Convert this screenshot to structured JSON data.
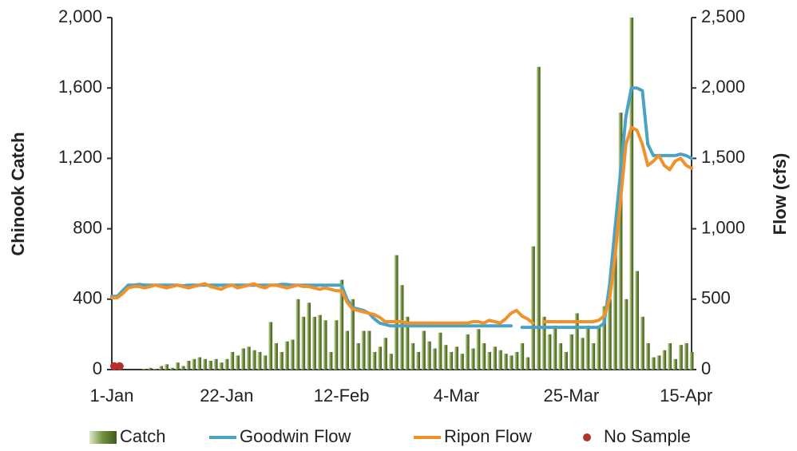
{
  "chart_data": {
    "type": "combo",
    "y_label": "Chinook Catch",
    "y2_label": "Flow (cfs)",
    "categories": [
      "1-Jan",
      null,
      null,
      null,
      null,
      null,
      null,
      null,
      null,
      null,
      null,
      null,
      null,
      null,
      null,
      null,
      null,
      null,
      null,
      null,
      null,
      "22-Jan",
      null,
      null,
      null,
      null,
      null,
      null,
      null,
      null,
      null,
      null,
      null,
      null,
      null,
      null,
      null,
      null,
      null,
      null,
      null,
      null,
      "12-Feb",
      null,
      null,
      null,
      null,
      null,
      null,
      null,
      null,
      null,
      null,
      null,
      null,
      null,
      null,
      null,
      null,
      null,
      null,
      null,
      null,
      "4-Mar",
      null,
      null,
      null,
      null,
      null,
      null,
      null,
      null,
      null,
      null,
      null,
      null,
      null,
      null,
      null,
      null,
      null,
      null,
      null,
      null,
      "25-Mar",
      null,
      null,
      null,
      null,
      null,
      null,
      null,
      null,
      null,
      null,
      null,
      null,
      null,
      null,
      null,
      null,
      null,
      null,
      null,
      null,
      "15-Apr",
      null
    ],
    "ylim": [
      0,
      2000
    ],
    "yticks": [
      0,
      400,
      800,
      {
        "value": 1200,
        "label": "1,200"
      },
      {
        "value": 1600,
        "label": "1,600"
      },
      {
        "value": 2000,
        "label": "2,000"
      }
    ],
    "y2lim": [
      0,
      2500
    ],
    "y2ticks": [
      0,
      500,
      {
        "value": 1000,
        "label": "1,000"
      },
      {
        "value": 1500,
        "label": "1,500"
      },
      {
        "value": 2000,
        "label": "2,000"
      },
      {
        "value": 2500,
        "label": "2,500"
      }
    ],
    "series": [
      {
        "name": "Catch",
        "type": "bar",
        "axis": "y",
        "color": "#6f8f3c",
        "values": [
          0,
          0,
          0,
          0,
          0,
          0,
          5,
          10,
          5,
          20,
          30,
          10,
          40,
          20,
          50,
          60,
          70,
          60,
          50,
          60,
          40,
          60,
          100,
          80,
          120,
          130,
          110,
          100,
          80,
          270,
          150,
          100,
          160,
          170,
          400,
          300,
          380,
          300,
          310,
          280,
          100,
          280,
          510,
          220,
          400,
          150,
          220,
          220,
          100,
          130,
          180,
          90,
          650,
          480,
          300,
          150,
          100,
          220,
          160,
          120,
          210,
          140,
          100,
          130,
          90,
          200,
          120,
          230,
          150,
          100,
          130,
          110,
          90,
          80,
          100,
          150,
          70,
          700,
          1720,
          300,
          200,
          250,
          150,
          100,
          200,
          320,
          180,
          250,
          150,
          250,
          360,
          400,
          800,
          1460,
          400,
          2000,
          560,
          300,
          150,
          70,
          80,
          110,
          150,
          60,
          140,
          150,
          100
        ]
      },
      {
        "name": "Goodwin Flow",
        "type": "line",
        "axis": "y2",
        "color": "#4aa3c4",
        "values": [
          520,
          520,
          560,
          600,
          600,
          605,
          600,
          600,
          600,
          600,
          600,
          600,
          600,
          595,
          600,
          600,
          600,
          600,
          600,
          600,
          600,
          600,
          600,
          600,
          600,
          600,
          600,
          600,
          600,
          600,
          600,
          605,
          605,
          600,
          600,
          600,
          600,
          600,
          600,
          600,
          600,
          600,
          600,
          500,
          440,
          430,
          420,
          400,
          360,
          330,
          320,
          310,
          310,
          310,
          310,
          310,
          310,
          310,
          310,
          310,
          310,
          310,
          310,
          310,
          310,
          310,
          310,
          310,
          310,
          310,
          310,
          310,
          310,
          310,
          null,
          300,
          300,
          300,
          300,
          300,
          300,
          300,
          300,
          300,
          300,
          300,
          300,
          300,
          300,
          300,
          330,
          600,
          1000,
          1400,
          1800,
          2000,
          2000,
          1980,
          1600,
          1520,
          1520,
          1520,
          1520,
          1520,
          1530,
          1520,
          1500
        ]
      },
      {
        "name": "Ripon Flow",
        "type": "line",
        "axis": "y2",
        "color": "#f0922c",
        "values": [
          510,
          510,
          540,
          580,
          590,
          590,
          580,
          590,
          600,
          590,
          580,
          590,
          600,
          590,
          580,
          590,
          600,
          610,
          590,
          580,
          570,
          590,
          600,
          580,
          590,
          600,
          610,
          590,
          580,
          600,
          600,
          590,
          580,
          590,
          600,
          590,
          590,
          580,
          570,
          580,
          570,
          560,
          560,
          480,
          430,
          420,
          410,
          400,
          390,
          370,
          340,
          340,
          340,
          340,
          330,
          330,
          330,
          330,
          330,
          330,
          330,
          330,
          330,
          330,
          330,
          330,
          340,
          340,
          330,
          350,
          340,
          330,
          360,
          400,
          420,
          380,
          360,
          330,
          null,
          340,
          340,
          340,
          340,
          340,
          340,
          340,
          340,
          340,
          340,
          350,
          380,
          500,
          800,
          1200,
          1600,
          1720,
          1700,
          1600,
          1450,
          1480,
          1520,
          1450,
          1420,
          1480,
          1500,
          1450,
          1430
        ]
      },
      {
        "name": "No Sample",
        "type": "scatter",
        "axis": "y",
        "color": "#b5312c",
        "values": [
          10,
          10,
          null,
          null,
          null,
          null,
          null,
          null,
          null,
          null,
          null,
          null,
          null,
          null,
          null,
          null,
          null,
          null,
          null,
          null,
          null,
          null,
          null,
          null,
          null,
          null,
          null,
          null,
          null,
          null,
          null,
          null,
          null,
          null,
          null,
          null,
          null,
          null,
          null,
          null,
          null,
          null,
          null,
          null,
          null,
          null,
          null,
          null,
          null,
          null,
          null,
          null,
          null,
          null,
          null,
          null,
          null,
          null,
          null,
          null,
          null,
          null,
          null,
          null,
          null,
          null,
          null,
          null,
          null,
          null,
          null,
          null,
          null,
          null,
          null,
          null,
          null,
          null,
          null,
          null,
          null,
          null,
          null,
          null,
          null,
          null,
          null,
          null,
          null,
          null,
          null,
          null,
          null,
          null,
          null,
          null,
          null,
          null,
          null,
          null,
          null,
          null,
          null,
          null,
          null,
          null,
          null
        ]
      }
    ]
  }
}
